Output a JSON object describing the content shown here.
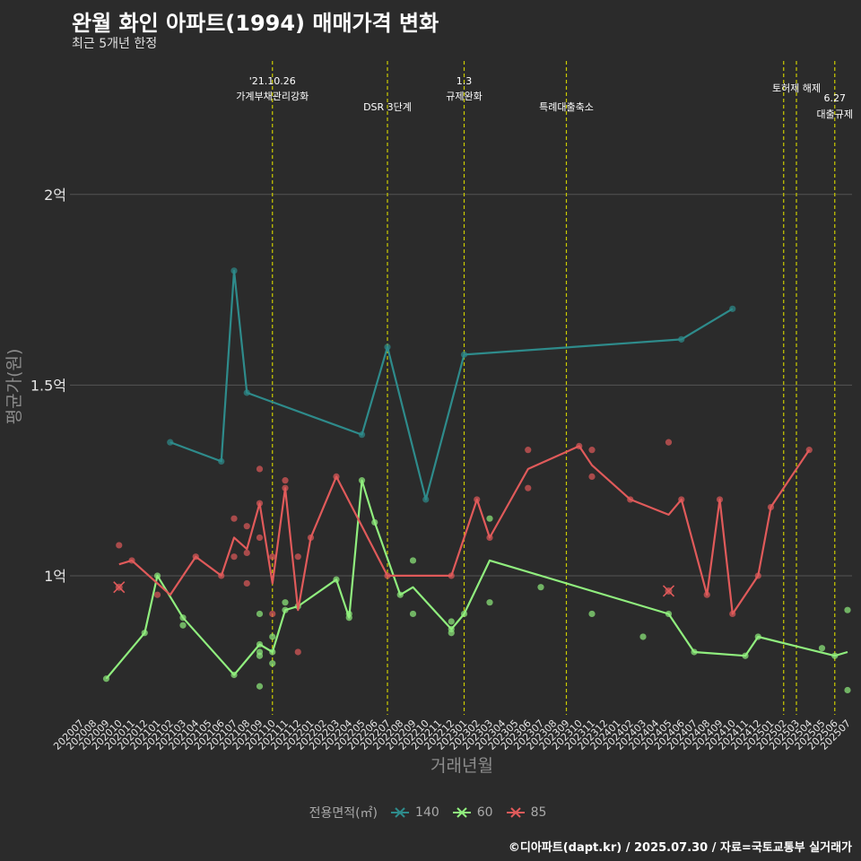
{
  "title": "완월 화인 아파트(1994) 매매가격 변화",
  "subtitle": "최근 5개년 한정",
  "footer": "©디아파트(dapt.kr) / 2025.07.30 / 자료=국토교통부 실거래가",
  "colors": {
    "background": "#2b2b2b",
    "grid": "#555555",
    "vline": "#cccc00",
    "s140": "#2e8b8b",
    "s60": "#90ee7e",
    "s85": "#e05a5a"
  },
  "chart_data": {
    "type": "line",
    "xlabel": "거래년월",
    "ylabel": "평균가(원)",
    "ylim": [
      0.64,
      2.35
    ],
    "y_unit": "억",
    "yticks": [
      {
        "value": 1.0,
        "label": "1억"
      },
      {
        "value": 1.5,
        "label": "1.5억"
      },
      {
        "value": 2.0,
        "label": "2억"
      }
    ],
    "x_categories": [
      "202007",
      "202008",
      "202009",
      "202010",
      "202011",
      "202012",
      "202101",
      "202102",
      "202103",
      "202104",
      "202105",
      "202106",
      "202107",
      "202108",
      "202109",
      "202110",
      "202111",
      "202112",
      "202201",
      "202202",
      "202203",
      "202204",
      "202205",
      "202206",
      "202207",
      "202208",
      "202209",
      "202210",
      "202211",
      "202212",
      "202301",
      "202302",
      "202303",
      "202304",
      "202305",
      "202306",
      "202307",
      "202308",
      "202309",
      "202310",
      "202311",
      "202312",
      "202401",
      "202402",
      "202403",
      "202404",
      "202405",
      "202406",
      "202407",
      "202408",
      "202409",
      "202410",
      "202411",
      "202412",
      "202501",
      "202502",
      "202503",
      "202504",
      "202505",
      "202506",
      "202507"
    ],
    "annotations": [
      {
        "x": "202110",
        "label": "'21.10.26\n가계부채관리강화",
        "tier": 1
      },
      {
        "x": "202207",
        "label": "DSR 3단계",
        "tier": 2
      },
      {
        "x": "202301",
        "label": "1.3\n규제완화",
        "tier": 1
      },
      {
        "x": "202309",
        "label": "특례대출축소",
        "tier": 2
      },
      {
        "x": "202502",
        "label": "",
        "tier": 0
      },
      {
        "x": "202503",
        "label": "토허제 해제",
        "tier": 1
      },
      {
        "x": "202506",
        "label": "6.27\n대출규제",
        "tier": 3
      }
    ],
    "legend_title": "전용면적(㎡)",
    "series": [
      {
        "name": "140",
        "color": "#2e8b8b",
        "line": [
          [
            "202102",
            1.35
          ],
          [
            "202106",
            1.3
          ],
          [
            "202107",
            1.8
          ],
          [
            "202108",
            1.48
          ],
          [
            "202205",
            1.37
          ],
          [
            "202207",
            1.6
          ],
          [
            "202210",
            1.2
          ],
          [
            "202301",
            1.58
          ],
          [
            "202406",
            1.62
          ],
          [
            "202410",
            1.7
          ]
        ],
        "points": [
          [
            "202102",
            1.35
          ],
          [
            "202106",
            1.3
          ],
          [
            "202107",
            1.8
          ],
          [
            "202108",
            1.48
          ],
          [
            "202205",
            1.37
          ],
          [
            "202207",
            1.6
          ],
          [
            "202210",
            1.2
          ],
          [
            "202301",
            1.58
          ],
          [
            "202406",
            1.62
          ],
          [
            "202410",
            1.7
          ]
        ],
        "crosses": []
      },
      {
        "name": "60",
        "color": "#90ee7e",
        "line": [
          [
            "202009",
            0.73
          ],
          [
            "202012",
            0.85
          ],
          [
            "202101",
            1.0
          ],
          [
            "202103",
            0.89
          ],
          [
            "202107",
            0.74
          ],
          [
            "202109",
            0.82
          ],
          [
            "202110",
            0.8
          ],
          [
            "202111",
            0.91
          ],
          [
            "202112",
            0.92
          ],
          [
            "202203",
            0.99
          ],
          [
            "202204",
            0.89
          ],
          [
            "202205",
            1.25
          ],
          [
            "202206",
            1.14
          ],
          [
            "202208",
            0.95
          ],
          [
            "202209",
            0.97
          ],
          [
            "202212",
            0.86
          ],
          [
            "202301",
            0.9
          ],
          [
            "202303",
            1.04
          ],
          [
            "202405",
            0.9
          ],
          [
            "202407",
            0.8
          ],
          [
            "202411",
            0.79
          ],
          [
            "202412",
            0.84
          ],
          [
            "202506",
            0.79
          ],
          [
            "202507",
            0.8
          ]
        ],
        "points": [
          [
            "202009",
            0.73
          ],
          [
            "202012",
            0.85
          ],
          [
            "202101",
            1.0
          ],
          [
            "202103",
            0.89
          ],
          [
            "202103",
            0.87
          ],
          [
            "202107",
            0.74
          ],
          [
            "202109",
            0.9
          ],
          [
            "202109",
            0.82
          ],
          [
            "202109",
            0.8
          ],
          [
            "202109",
            0.79
          ],
          [
            "202109",
            0.71
          ],
          [
            "202110",
            0.77
          ],
          [
            "202110",
            0.84
          ],
          [
            "202110",
            0.8
          ],
          [
            "202111",
            0.91
          ],
          [
            "202111",
            0.93
          ],
          [
            "202112",
            0.92
          ],
          [
            "202203",
            0.99
          ],
          [
            "202204",
            0.89
          ],
          [
            "202204",
            0.9
          ],
          [
            "202205",
            1.25
          ],
          [
            "202206",
            1.14
          ],
          [
            "202208",
            0.95
          ],
          [
            "202209",
            0.9
          ],
          [
            "202209",
            1.04
          ],
          [
            "202212",
            0.86
          ],
          [
            "202212",
            0.88
          ],
          [
            "202212",
            0.85
          ],
          [
            "202301",
            0.9
          ],
          [
            "202303",
            0.93
          ],
          [
            "202303",
            1.15
          ],
          [
            "202307",
            0.97
          ],
          [
            "202311",
            0.9
          ],
          [
            "202403",
            0.84
          ],
          [
            "202405",
            0.9
          ],
          [
            "202407",
            0.8
          ],
          [
            "202411",
            0.79
          ],
          [
            "202412",
            0.84
          ],
          [
            "202505",
            0.81
          ],
          [
            "202506",
            0.79
          ],
          [
            "202507",
            0.91
          ],
          [
            "202507",
            0.7
          ]
        ],
        "crosses": []
      },
      {
        "name": "85",
        "color": "#e05a5a",
        "line": [
          [
            "202010",
            1.03
          ],
          [
            "202011",
            1.04
          ],
          [
            "202102",
            0.95
          ],
          [
            "202104",
            1.05
          ],
          [
            "202106",
            1.0
          ],
          [
            "202107",
            1.1
          ],
          [
            "202108",
            1.07
          ],
          [
            "202109",
            1.19
          ],
          [
            "202110",
            0.98
          ],
          [
            "202111",
            1.23
          ],
          [
            "202112",
            0.91
          ],
          [
            "202201",
            1.1
          ],
          [
            "202203",
            1.26
          ],
          [
            "202207",
            1.0
          ],
          [
            "202212",
            1.0
          ],
          [
            "202302",
            1.2
          ],
          [
            "202303",
            1.1
          ],
          [
            "202306",
            1.28
          ],
          [
            "202310",
            1.34
          ],
          [
            "202311",
            1.29
          ],
          [
            "202402",
            1.2
          ],
          [
            "202405",
            1.16
          ],
          [
            "202406",
            1.2
          ],
          [
            "202408",
            0.95
          ],
          [
            "202409",
            1.2
          ],
          [
            "202410",
            0.9
          ],
          [
            "202412",
            1.0
          ],
          [
            "202501",
            1.18
          ],
          [
            "202504",
            1.33
          ]
        ],
        "points": [
          [
            "202010",
            1.08
          ],
          [
            "202011",
            1.04
          ],
          [
            "202101",
            0.95
          ],
          [
            "202104",
            1.05
          ],
          [
            "202106",
            1.0
          ],
          [
            "202107",
            1.15
          ],
          [
            "202107",
            1.05
          ],
          [
            "202108",
            1.13
          ],
          [
            "202108",
            1.06
          ],
          [
            "202108",
            0.98
          ],
          [
            "202109",
            1.28
          ],
          [
            "202109",
            1.1
          ],
          [
            "202109",
            1.19
          ],
          [
            "202110",
            0.9
          ],
          [
            "202110",
            1.05
          ],
          [
            "202111",
            1.25
          ],
          [
            "202111",
            1.23
          ],
          [
            "202112",
            0.8
          ],
          [
            "202112",
            1.05
          ],
          [
            "202201",
            1.1
          ],
          [
            "202203",
            1.26
          ],
          [
            "202207",
            1.0
          ],
          [
            "202212",
            1.0
          ],
          [
            "202302",
            1.2
          ],
          [
            "202303",
            1.1
          ],
          [
            "202306",
            1.33
          ],
          [
            "202306",
            1.23
          ],
          [
            "202310",
            1.34
          ],
          [
            "202311",
            1.33
          ],
          [
            "202311",
            1.26
          ],
          [
            "202402",
            1.2
          ],
          [
            "202405",
            1.35
          ],
          [
            "202406",
            1.2
          ],
          [
            "202408",
            0.95
          ],
          [
            "202409",
            1.2
          ],
          [
            "202410",
            0.9
          ],
          [
            "202412",
            1.0
          ],
          [
            "202501",
            1.18
          ],
          [
            "202504",
            1.33
          ]
        ],
        "crosses": [
          [
            "202010",
            0.97
          ],
          [
            "202405",
            0.96
          ]
        ]
      }
    ]
  }
}
